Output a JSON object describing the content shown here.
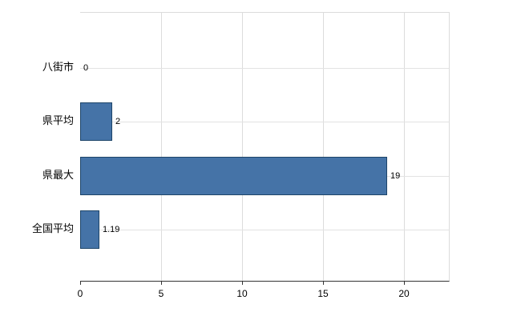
{
  "chart_data": {
    "type": "bar",
    "orientation": "horizontal",
    "title": "",
    "xlabel": "",
    "ylabel": "",
    "categories": [
      "八街市",
      "県平均",
      "県最大",
      "全国平均"
    ],
    "values": [
      0,
      2,
      19,
      1.19
    ],
    "value_labels": [
      "0",
      "2",
      "19",
      "1.19"
    ],
    "xlim": [
      0,
      22.8
    ],
    "xticks": [
      0,
      5,
      10,
      15,
      20
    ],
    "grid": true,
    "legend": false,
    "colors": {
      "bar_fill": "#4573a7",
      "bar_border": "#1e4569",
      "gridline": "#dcdcdc",
      "axis": "#333333",
      "text": "#000000"
    }
  }
}
